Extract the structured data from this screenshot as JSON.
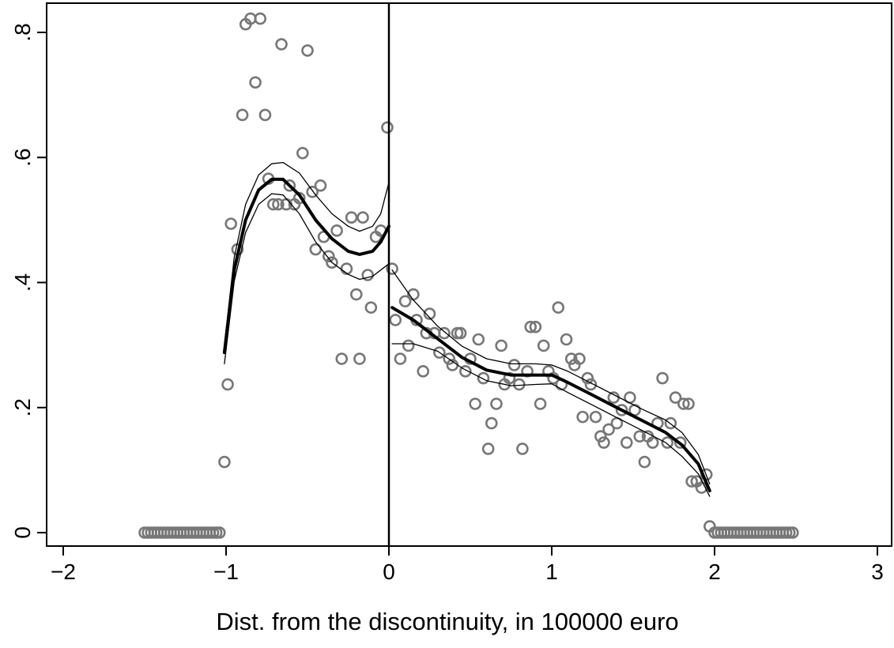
{
  "chart_data": {
    "type": "scatter",
    "title": "",
    "xlabel": "Dist. from the discontinuity, in 100000 euro",
    "ylabel": "",
    "xlim": [
      -2,
      3
    ],
    "ylim": [
      0,
      0.8
    ],
    "x_ticks": [
      -2,
      -1,
      0,
      1,
      2,
      3
    ],
    "x_tick_labels": [
      "−2",
      "−1",
      "0",
      "1",
      "2",
      "3"
    ],
    "y_ticks": [
      0,
      0.2,
      0.4,
      0.6,
      0.8
    ],
    "y_tick_labels": [
      "0",
      ".2",
      ".4",
      ".6",
      ".8"
    ],
    "grid": false,
    "discontinuity_x": 0,
    "colors": {
      "markers": "#777777",
      "fit": "#000000",
      "axes": "#000000"
    },
    "series": [
      {
        "type": "scatter",
        "points": [
          [
            -1.5,
            0
          ],
          [
            -1.48,
            0
          ],
          [
            -1.46,
            0
          ],
          [
            -1.44,
            0
          ],
          [
            -1.42,
            0
          ],
          [
            -1.4,
            0
          ],
          [
            -1.38,
            0
          ],
          [
            -1.36,
            0
          ],
          [
            -1.34,
            0
          ],
          [
            -1.32,
            0
          ],
          [
            -1.3,
            0
          ],
          [
            -1.28,
            0
          ],
          [
            -1.26,
            0
          ],
          [
            -1.24,
            0
          ],
          [
            -1.22,
            0
          ],
          [
            -1.2,
            0
          ],
          [
            -1.18,
            0
          ],
          [
            -1.16,
            0
          ],
          [
            -1.14,
            0
          ],
          [
            -1.12,
            0
          ],
          [
            -1.1,
            0
          ],
          [
            -1.08,
            0
          ],
          [
            -1.06,
            0
          ],
          [
            -1.04,
            0
          ],
          [
            -1.01,
            0.113
          ],
          [
            -0.99,
            0.237
          ],
          [
            -0.97,
            0.494
          ],
          [
            -0.93,
            0.453
          ],
          [
            -0.9,
            0.668
          ],
          [
            -0.88,
            0.813
          ],
          [
            -0.85,
            0.822
          ],
          [
            -0.82,
            0.72
          ],
          [
            -0.79,
            0.822
          ],
          [
            -0.76,
            0.668
          ],
          [
            -0.74,
            0.566
          ],
          [
            -0.71,
            0.525
          ],
          [
            -0.68,
            0.525
          ],
          [
            -0.66,
            0.781
          ],
          [
            -0.63,
            0.525
          ],
          [
            -0.61,
            0.555
          ],
          [
            -0.58,
            0.525
          ],
          [
            -0.55,
            0.535
          ],
          [
            -0.53,
            0.607
          ],
          [
            -0.5,
            0.771
          ],
          [
            -0.47,
            0.545
          ],
          [
            -0.45,
            0.453
          ],
          [
            -0.42,
            0.555
          ],
          [
            -0.4,
            0.473
          ],
          [
            -0.37,
            0.442
          ],
          [
            -0.35,
            0.432
          ],
          [
            -0.32,
            0.483
          ],
          [
            -0.29,
            0.278
          ],
          [
            -0.26,
            0.422
          ],
          [
            -0.23,
            0.504
          ],
          [
            -0.2,
            0.381
          ],
          [
            -0.18,
            0.278
          ],
          [
            -0.16,
            0.504
          ],
          [
            -0.13,
            0.412
          ],
          [
            -0.11,
            0.36
          ],
          [
            -0.08,
            0.473
          ],
          [
            -0.05,
            0.483
          ],
          [
            -0.01,
            0.648
          ],
          [
            0.02,
            0.422
          ],
          [
            0.04,
            0.34
          ],
          [
            0.07,
            0.278
          ],
          [
            0.1,
            0.37
          ],
          [
            0.12,
            0.299
          ],
          [
            0.15,
            0.381
          ],
          [
            0.17,
            0.34
          ],
          [
            0.21,
            0.258
          ],
          [
            0.23,
            0.319
          ],
          [
            0.25,
            0.35
          ],
          [
            0.28,
            0.319
          ],
          [
            0.31,
            0.288
          ],
          [
            0.34,
            0.319
          ],
          [
            0.37,
            0.278
          ],
          [
            0.39,
            0.268
          ],
          [
            0.42,
            0.319
          ],
          [
            0.44,
            0.319
          ],
          [
            0.47,
            0.258
          ],
          [
            0.5,
            0.278
          ],
          [
            0.53,
            0.206
          ],
          [
            0.55,
            0.309
          ],
          [
            0.58,
            0.247
          ],
          [
            0.61,
            0.134
          ],
          [
            0.63,
            0.175
          ],
          [
            0.66,
            0.206
          ],
          [
            0.69,
            0.299
          ],
          [
            0.71,
            0.237
          ],
          [
            0.74,
            0.247
          ],
          [
            0.77,
            0.268
          ],
          [
            0.8,
            0.237
          ],
          [
            0.82,
            0.134
          ],
          [
            0.85,
            0.258
          ],
          [
            0.87,
            0.329
          ],
          [
            0.9,
            0.329
          ],
          [
            0.93,
            0.206
          ],
          [
            0.95,
            0.299
          ],
          [
            0.98,
            0.258
          ],
          [
            1.01,
            0.247
          ],
          [
            1.04,
            0.36
          ],
          [
            1.06,
            0.237
          ],
          [
            1.09,
            0.309
          ],
          [
            1.12,
            0.278
          ],
          [
            1.14,
            0.268
          ],
          [
            1.17,
            0.278
          ],
          [
            1.19,
            0.185
          ],
          [
            1.22,
            0.247
          ],
          [
            1.24,
            0.237
          ],
          [
            1.27,
            0.185
          ],
          [
            1.3,
            0.154
          ],
          [
            1.32,
            0.144
          ],
          [
            1.35,
            0.165
          ],
          [
            1.38,
            0.216
          ],
          [
            1.4,
            0.175
          ],
          [
            1.43,
            0.196
          ],
          [
            1.46,
            0.144
          ],
          [
            1.48,
            0.216
          ],
          [
            1.51,
            0.196
          ],
          [
            1.54,
            0.154
          ],
          [
            1.57,
            0.113
          ],
          [
            1.59,
            0.154
          ],
          [
            1.62,
            0.144
          ],
          [
            1.65,
            0.175
          ],
          [
            1.68,
            0.247
          ],
          [
            1.71,
            0.144
          ],
          [
            1.73,
            0.175
          ],
          [
            1.76,
            0.216
          ],
          [
            1.79,
            0.144
          ],
          [
            1.81,
            0.206
          ],
          [
            1.84,
            0.206
          ],
          [
            1.86,
            0.082
          ],
          [
            1.89,
            0.082
          ],
          [
            1.92,
            0.072
          ],
          [
            1.95,
            0.093
          ],
          [
            1.97,
            0.01
          ],
          [
            2.0,
            0
          ],
          [
            2.02,
            0
          ],
          [
            2.04,
            0
          ],
          [
            2.06,
            0
          ],
          [
            2.08,
            0
          ],
          [
            2.1,
            0
          ],
          [
            2.12,
            0
          ],
          [
            2.14,
            0
          ],
          [
            2.16,
            0
          ],
          [
            2.18,
            0
          ],
          [
            2.2,
            0
          ],
          [
            2.22,
            0
          ],
          [
            2.24,
            0
          ],
          [
            2.26,
            0
          ],
          [
            2.28,
            0
          ],
          [
            2.3,
            0
          ],
          [
            2.32,
            0
          ],
          [
            2.34,
            0
          ],
          [
            2.36,
            0
          ],
          [
            2.38,
            0
          ],
          [
            2.4,
            0
          ],
          [
            2.42,
            0
          ],
          [
            2.44,
            0
          ],
          [
            2.46,
            0
          ],
          [
            2.48,
            0
          ]
        ]
      },
      {
        "type": "line",
        "role": "fit-left",
        "points": [
          [
            -1.01,
            0.288
          ],
          [
            -0.95,
            0.42
          ],
          [
            -0.88,
            0.5
          ],
          [
            -0.8,
            0.548
          ],
          [
            -0.72,
            0.565
          ],
          [
            -0.65,
            0.565
          ],
          [
            -0.55,
            0.54
          ],
          [
            -0.45,
            0.5
          ],
          [
            -0.35,
            0.47
          ],
          [
            -0.25,
            0.45
          ],
          [
            -0.18,
            0.445
          ],
          [
            -0.1,
            0.45
          ],
          [
            -0.05,
            0.465
          ],
          [
            0.0,
            0.49
          ]
        ]
      },
      {
        "type": "line",
        "role": "ci-upper-left",
        "points": [
          [
            -1.01,
            0.3
          ],
          [
            -0.95,
            0.44
          ],
          [
            -0.88,
            0.525
          ],
          [
            -0.8,
            0.572
          ],
          [
            -0.72,
            0.59
          ],
          [
            -0.65,
            0.592
          ],
          [
            -0.55,
            0.575
          ],
          [
            -0.45,
            0.54
          ],
          [
            -0.35,
            0.51
          ],
          [
            -0.25,
            0.49
          ],
          [
            -0.18,
            0.482
          ],
          [
            -0.1,
            0.49
          ],
          [
            -0.05,
            0.51
          ],
          [
            0.0,
            0.56
          ]
        ]
      },
      {
        "type": "line",
        "role": "ci-lower-left",
        "points": [
          [
            -1.01,
            0.27
          ],
          [
            -0.95,
            0.402
          ],
          [
            -0.88,
            0.48
          ],
          [
            -0.8,
            0.525
          ],
          [
            -0.72,
            0.542
          ],
          [
            -0.65,
            0.54
          ],
          [
            -0.55,
            0.51
          ],
          [
            -0.45,
            0.465
          ],
          [
            -0.35,
            0.432
          ],
          [
            -0.25,
            0.413
          ],
          [
            -0.18,
            0.405
          ],
          [
            -0.1,
            0.41
          ],
          [
            -0.05,
            0.42
          ],
          [
            0.0,
            0.43
          ]
        ]
      },
      {
        "type": "line",
        "role": "fit-right",
        "points": [
          [
            0.02,
            0.36
          ],
          [
            0.15,
            0.34
          ],
          [
            0.3,
            0.31
          ],
          [
            0.45,
            0.28
          ],
          [
            0.6,
            0.26
          ],
          [
            0.75,
            0.252
          ],
          [
            0.9,
            0.252
          ],
          [
            1.0,
            0.252
          ],
          [
            1.1,
            0.24
          ],
          [
            1.25,
            0.22
          ],
          [
            1.4,
            0.2
          ],
          [
            1.55,
            0.18
          ],
          [
            1.7,
            0.16
          ],
          [
            1.8,
            0.14
          ],
          [
            1.9,
            0.11
          ],
          [
            1.97,
            0.067
          ]
        ]
      },
      {
        "type": "line",
        "role": "ci-upper-right",
        "points": [
          [
            0.02,
            0.42
          ],
          [
            0.15,
            0.372
          ],
          [
            0.3,
            0.33
          ],
          [
            0.45,
            0.298
          ],
          [
            0.6,
            0.278
          ],
          [
            0.75,
            0.27
          ],
          [
            0.9,
            0.27
          ],
          [
            1.0,
            0.268
          ],
          [
            1.1,
            0.258
          ],
          [
            1.25,
            0.238
          ],
          [
            1.4,
            0.218
          ],
          [
            1.55,
            0.198
          ],
          [
            1.7,
            0.18
          ],
          [
            1.8,
            0.16
          ],
          [
            1.9,
            0.125
          ],
          [
            1.97,
            0.078
          ]
        ]
      },
      {
        "type": "line",
        "role": "ci-lower-right",
        "points": [
          [
            0.02,
            0.302
          ],
          [
            0.15,
            0.302
          ],
          [
            0.3,
            0.29
          ],
          [
            0.45,
            0.263
          ],
          [
            0.6,
            0.243
          ],
          [
            0.75,
            0.235
          ],
          [
            0.9,
            0.237
          ],
          [
            1.0,
            0.238
          ],
          [
            1.1,
            0.224
          ],
          [
            1.25,
            0.204
          ],
          [
            1.4,
            0.184
          ],
          [
            1.55,
            0.164
          ],
          [
            1.7,
            0.144
          ],
          [
            1.8,
            0.122
          ],
          [
            1.9,
            0.094
          ],
          [
            1.97,
            0.058
          ]
        ]
      }
    ]
  }
}
